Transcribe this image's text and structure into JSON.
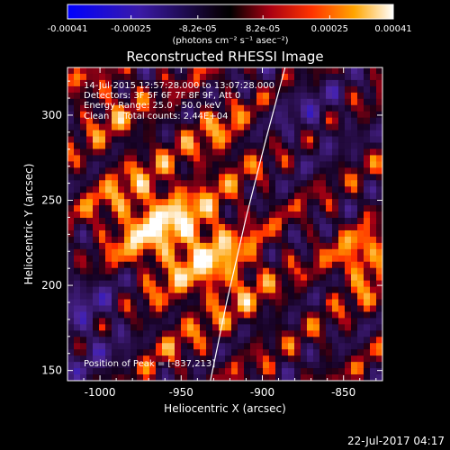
{
  "colorbar": {
    "tick_labels": [
      "-0.00041",
      "-0.00025",
      "-8.2e-05",
      "8.2e-05",
      "0.00025",
      "0.00041"
    ],
    "tick_values": [
      -0.00041,
      -0.00025,
      -8.2e-05,
      8.2e-05,
      0.00025,
      0.00041
    ],
    "range": [
      -0.00041,
      0.00041
    ],
    "unit_label": "(photons cm⁻² s⁻¹ asec⁻²)"
  },
  "chart_data": {
    "type": "heatmap",
    "title": "Reconstructed RHESSI Image",
    "xlabel": "Heliocentric X (arcsec)",
    "ylabel": "Heliocentric Y (arcsec)",
    "xlim": [
      -1020,
      -826
    ],
    "ylim": [
      144,
      328
    ],
    "x_ticks": [
      -1000,
      -950,
      -900,
      -850
    ],
    "x_tick_labels": [
      "-1000",
      "-950",
      "-900",
      "-850"
    ],
    "y_ticks": [
      150,
      200,
      250,
      300
    ],
    "y_tick_labels": [
      "150",
      "200",
      "250",
      "300"
    ],
    "limb_curve": [
      [
        -932,
        144
      ],
      [
        -922,
        190
      ],
      [
        -910,
        240
      ],
      [
        -898,
        285
      ],
      [
        -886,
        328
      ]
    ],
    "annotations": [
      "14-Jul-2015 12:57:28.000 to 13:07:28.000",
      "Detectors: 3F 5F 6F 7F 8F 9F, Att 0",
      "Energy Range: 25.0 - 50.0 keV",
      "Clean     Total counts: 2.44E+04"
    ],
    "peak_label": "Position of Peak = [-837,213]",
    "peak": [
      -837,
      213
    ],
    "colors": {
      "negative_min": "#0000ff",
      "zero": "#000000",
      "positive_mid": "#ff2a00",
      "positive_high": "#ffa000",
      "positive_max": "#ffffff"
    }
  },
  "footer": {
    "date_stamp": "22-Jul-2017 04:17"
  }
}
